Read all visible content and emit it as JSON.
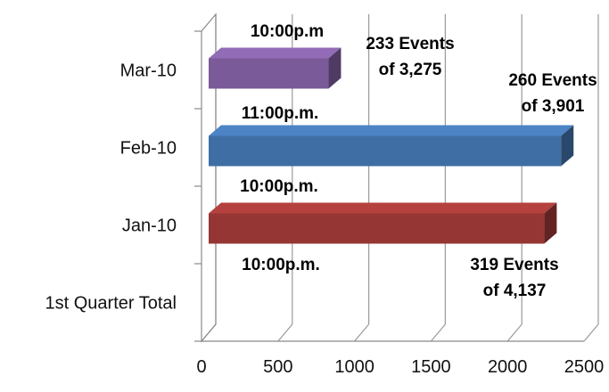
{
  "chart_data": {
    "type": "bar",
    "orientation": "horizontal",
    "style": "3d",
    "categories": [
      "1st Quarter Total",
      "Jan-10",
      "Feb-10",
      "Mar-10"
    ],
    "values": [
      null,
      2240,
      2350,
      830
    ],
    "bar_colors": [
      "",
      "#963634",
      "#3F6EA5",
      "#7A5A98"
    ],
    "xlim": [
      0,
      2500
    ],
    "xticks": [
      0,
      500,
      1000,
      1500,
      2000,
      2500
    ],
    "grid": true,
    "legend": "none",
    "annotations": [
      {
        "id": "mar-time",
        "text": "10:00p.m"
      },
      {
        "id": "mar-events",
        "lines": [
          "233 Events",
          "of 3,275"
        ]
      },
      {
        "id": "feb-events",
        "lines": [
          "260 Events",
          "of 3,901"
        ]
      },
      {
        "id": "feb-time",
        "text": "11:00p.m."
      },
      {
        "id": "jan-time",
        "text": "10:00p.m."
      },
      {
        "id": "q1-time",
        "text": "10:00p.m."
      },
      {
        "id": "q1-events",
        "lines": [
          "319 Events",
          "of 4,137"
        ]
      }
    ]
  }
}
